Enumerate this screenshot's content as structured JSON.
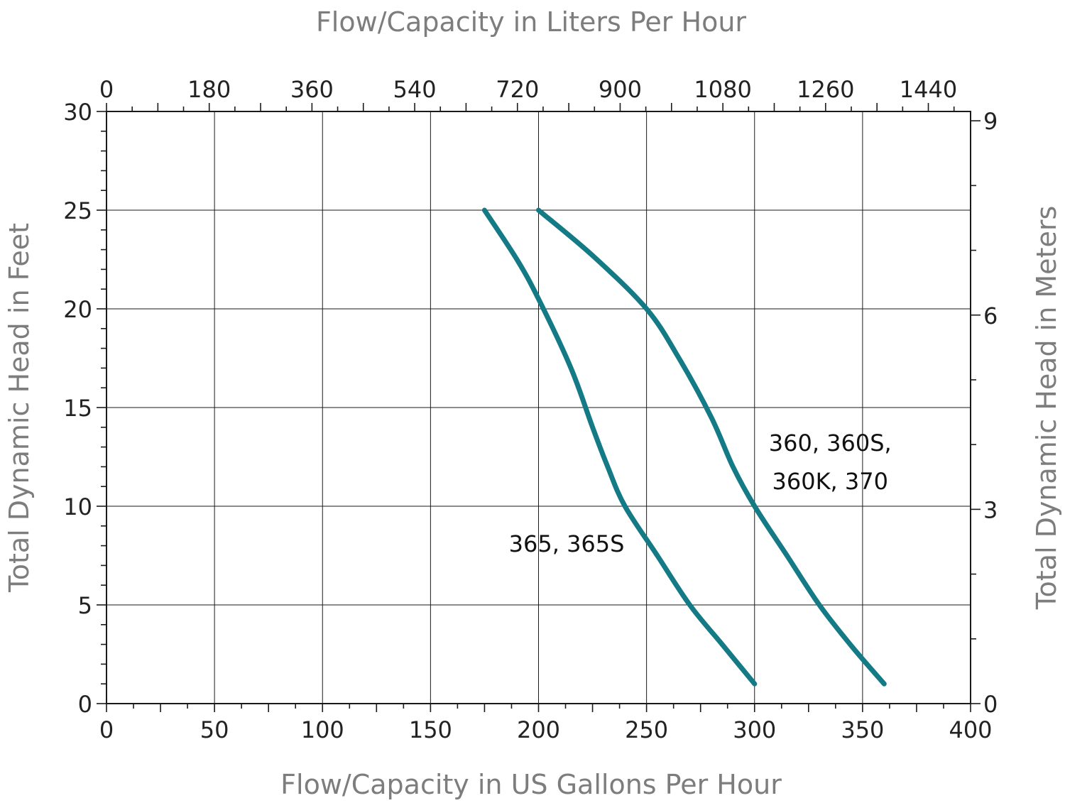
{
  "chart_data": {
    "type": "line",
    "xlabel": "Flow/Capacity in US Gallons Per Hour",
    "x2label": "Flow/Capacity in Liters Per Hour",
    "ylabel": "Total Dynamic Head in Feet",
    "y2label": "Total Dynamic Head in Meters",
    "xlim": [
      0,
      400
    ],
    "ylim": [
      0,
      30
    ],
    "x_ticks": [
      "0",
      "50",
      "100",
      "150",
      "200",
      "250",
      "300",
      "350",
      "400"
    ],
    "x_tick_values": [
      0,
      50,
      100,
      150,
      200,
      250,
      300,
      350,
      400
    ],
    "y_ticks": [
      "0",
      "5",
      "10",
      "15",
      "20",
      "25",
      "30"
    ],
    "y_tick_values": [
      0,
      5,
      10,
      15,
      20,
      25,
      30
    ],
    "x2_ticks": [
      "0",
      "180",
      "360",
      "540",
      "720",
      "900",
      "1080",
      "1260",
      "1440"
    ],
    "x2_tick_values": [
      0,
      180,
      360,
      540,
      720,
      900,
      1080,
      1260,
      1440
    ],
    "x2_lim": [
      0,
      1514
    ],
    "y2_ticks": [
      "0",
      "3",
      "6",
      "9"
    ],
    "y2_tick_values": [
      0,
      3,
      6,
      9
    ],
    "y2_lim": [
      0,
      9.144
    ],
    "grid": true,
    "series": [
      {
        "name": "360, 360S,\n360K, 370",
        "label_lines": [
          "360, 360S,",
          "360K, 370"
        ],
        "label_at": {
          "x": 335,
          "y": 12.8
        },
        "color": "#137a86",
        "x": [
          200,
          225,
          250,
          265,
          280,
          290,
          300,
          315,
          330,
          345,
          360
        ],
        "y": [
          25,
          22.7,
          20,
          17.5,
          14.5,
          12,
          10,
          7.5,
          5,
          2.9,
          1
        ]
      },
      {
        "name": "365, 365S",
        "label_lines": [
          "365, 365S"
        ],
        "label_at": {
          "x": 213,
          "y": 7.7
        },
        "color": "#137a86",
        "x": [
          175,
          190,
          200,
          215,
          225,
          232,
          240,
          255,
          270,
          285,
          300
        ],
        "y": [
          25,
          22.5,
          20.5,
          17,
          14,
          12,
          10,
          7.5,
          5,
          3,
          1
        ]
      }
    ]
  }
}
